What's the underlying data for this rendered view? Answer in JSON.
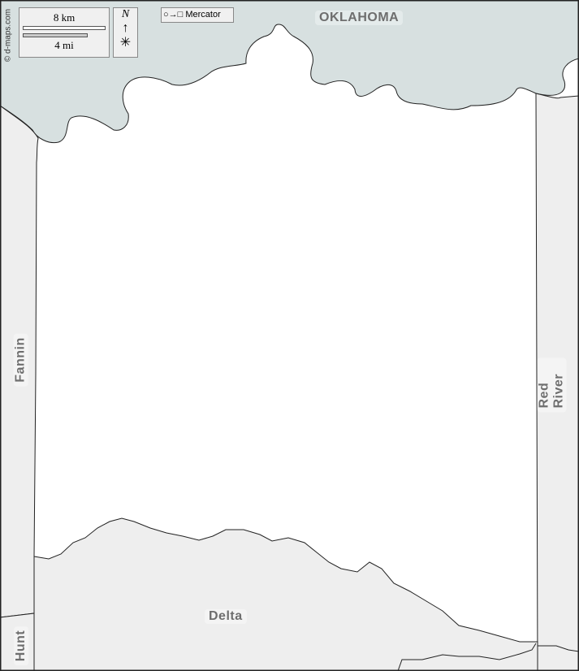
{
  "credit": "© d-maps.com",
  "scale": {
    "km": "8 km",
    "mi": "4 mi"
  },
  "north": "N",
  "projection": "Mercator",
  "projection_icon": "circle-to-square-icon",
  "labels": {
    "oklahoma": "OKLAHOMA",
    "fannin": "Fannin",
    "red_river": "Red River",
    "delta": "Delta",
    "hunt": "Hunt"
  },
  "colors": {
    "water_state": "#d7e0e0",
    "neighbor": "#eeeeee",
    "focus": "#ffffff",
    "border": "#333333"
  }
}
